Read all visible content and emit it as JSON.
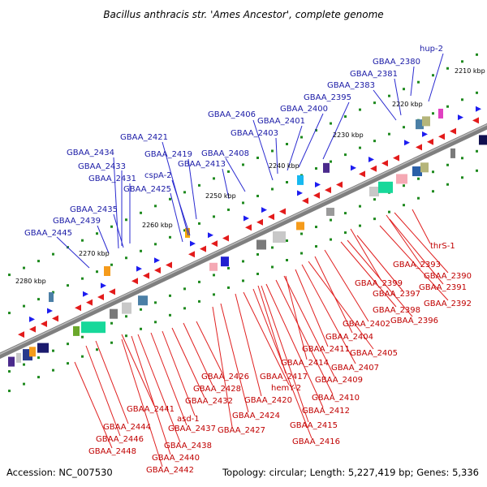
{
  "title": "Bacillus anthracis str. 'Ames Ancestor', complete genome",
  "footer": {
    "accession": "Accession: NC_007530",
    "summary": "Topology: circular; Length: 5,227,419 bp; Genes: 5,336"
  },
  "ticks": [
    "2210 kbp",
    "2220 kbp",
    "2230 kbp",
    "2240 kbp",
    "2250 kbp",
    "2260 kbp",
    "2270 kbp",
    "2280 kbp"
  ],
  "upper_labels": [
    "hup-2",
    "GBAA_2380",
    "GBAA_2381",
    "GBAA_2383",
    "GBAA_2395",
    "GBAA_2400",
    "GBAA_2401",
    "GBAA_2403",
    "GBAA_2406",
    "GBAA_2408",
    "GBAA_2413",
    "GBAA_2419",
    "GBAA_2421",
    "cspA-2",
    "GBAA_2425",
    "GBAA_2431",
    "GBAA_2433",
    "GBAA_2434",
    "GBAA_2435",
    "GBAA_2439",
    "GBAA_2445"
  ],
  "lower_labels": [
    "thrS-1",
    "GBAA_2393",
    "GBAA_2390",
    "GBAA_2391",
    "GBAA_2392",
    "GBAA_2399",
    "GBAA_2397",
    "GBAA_2398",
    "GBAA_2396",
    "GBAA_2402",
    "GBAA_2404",
    "GBAA_2405",
    "GBAA_2407",
    "GBAA_2411",
    "GBAA_2414",
    "GBAA_2409",
    "GBAA_2410",
    "GBAA_2412",
    "GBAA_2417",
    "GBAA_2415",
    "GBAA_2416",
    "hemY-2",
    "GBAA_2420",
    "GBAA_2424",
    "GBAA_2427",
    "GBAA_2426",
    "GBAA_2428",
    "GBAA_2432",
    "GBAA_2441",
    "asd-1",
    "GBAA_2437",
    "GBAA_2444",
    "GBAA_2446",
    "GBAA_2448",
    "GBAA_2438",
    "GBAA_2440",
    "GBAA_2442"
  ],
  "colors": {
    "upper_label": "#1a1aa6",
    "lower_label": "#c00000",
    "backbone": "#808080",
    "forward": "#0000ee",
    "reverse": "#ee0000",
    "tick": "#1f8a1f"
  }
}
